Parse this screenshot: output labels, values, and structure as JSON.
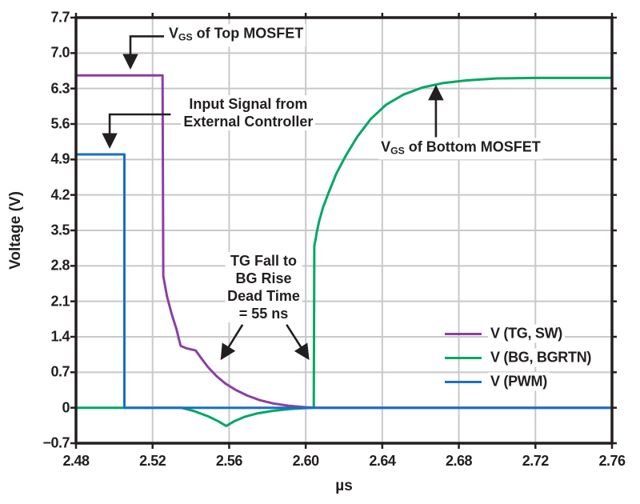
{
  "chart_data": {
    "type": "line",
    "title": "",
    "xlabel": "µs",
    "ylabel": "Voltage (V)",
    "xlim": [
      2.48,
      2.76
    ],
    "ylim": [
      -0.7,
      7.7
    ],
    "grid": true,
    "legend_position": "lower right",
    "xticks": [
      2.48,
      2.52,
      2.56,
      2.6,
      2.64,
      2.68,
      2.72,
      2.76
    ],
    "xtick_labels": [
      "2.48",
      "2.52",
      "2.56",
      "2.60",
      "2.64",
      "2.68",
      "2.72",
      "2.76"
    ],
    "yticks": [
      7.7,
      7.0,
      6.3,
      5.6,
      4.9,
      4.2,
      3.5,
      2.8,
      2.1,
      1.4,
      0.7,
      0,
      -0.7
    ],
    "ytick_labels": [
      "7.7",
      "7.0",
      "6.3",
      "5.6",
      "4.9",
      "4.2",
      "3.5",
      "2.8",
      "2.1",
      "1.4",
      "0.7",
      "0",
      "−0.7"
    ],
    "series": [
      {
        "name": "V (TG, SW)",
        "color": "#8C3FA4",
        "points": [
          [
            2.48,
            6.56
          ],
          [
            2.5252,
            6.56
          ],
          [
            2.5256,
            2.6
          ],
          [
            2.5275,
            2.2
          ],
          [
            2.53,
            1.85
          ],
          [
            2.5325,
            1.55
          ],
          [
            2.534,
            1.32
          ],
          [
            2.5347,
            1.22
          ],
          [
            2.538,
            1.17
          ],
          [
            2.5425,
            1.13
          ],
          [
            2.545,
            1.0
          ],
          [
            2.549,
            0.8
          ],
          [
            2.5535,
            0.62
          ],
          [
            2.558,
            0.48
          ],
          [
            2.5635,
            0.35
          ],
          [
            2.5695,
            0.24
          ],
          [
            2.576,
            0.15
          ],
          [
            2.583,
            0.085
          ],
          [
            2.591,
            0.04
          ],
          [
            2.599,
            0.012
          ],
          [
            2.606,
            0
          ],
          [
            2.76,
            0
          ]
        ]
      },
      {
        "name": "V (BG, BGRTN)",
        "color": "#00A765",
        "points": [
          [
            2.48,
            0
          ],
          [
            2.535,
            0
          ],
          [
            2.542,
            -0.07
          ],
          [
            2.549,
            -0.17
          ],
          [
            2.5545,
            -0.27
          ],
          [
            2.5585,
            -0.36
          ],
          [
            2.5625,
            -0.27
          ],
          [
            2.568,
            -0.18
          ],
          [
            2.575,
            -0.11
          ],
          [
            2.583,
            -0.06
          ],
          [
            2.592,
            -0.025
          ],
          [
            2.601,
            -0.005
          ],
          [
            2.6042,
            0
          ],
          [
            2.6045,
            3.2
          ],
          [
            2.6052,
            3.33
          ],
          [
            2.6057,
            3.45
          ],
          [
            2.607,
            3.68
          ],
          [
            2.609,
            3.95
          ],
          [
            2.612,
            4.25
          ],
          [
            2.616,
            4.62
          ],
          [
            2.621,
            4.98
          ],
          [
            2.627,
            5.35
          ],
          [
            2.634,
            5.7
          ],
          [
            2.642,
            5.98
          ],
          [
            2.651,
            6.18
          ],
          [
            2.661,
            6.32
          ],
          [
            2.672,
            6.41
          ],
          [
            2.684,
            6.46
          ],
          [
            2.7,
            6.5
          ],
          [
            2.72,
            6.51
          ],
          [
            2.76,
            6.51
          ]
        ]
      },
      {
        "name": "V (PWM)",
        "color": "#1A6FC5",
        "points": [
          [
            2.48,
            5.0
          ],
          [
            2.5053,
            5.0
          ],
          [
            2.5053,
            0
          ],
          [
            2.76,
            0
          ]
        ]
      }
    ],
    "annotations": [
      {
        "id": "vgs-top-mosfet",
        "segments": [
          {
            "t": "V"
          },
          {
            "sub": "GS"
          },
          {
            "t": " of Top MOSFET"
          }
        ],
        "anchor": {
          "x": 2.5272,
          "y": 7.35,
          "align": "left"
        },
        "arrows": [
          {
            "points": [
              [
                2.526,
                7.33
              ],
              [
                2.5084,
                7.33
              ],
              [
                2.5084,
                6.72
              ]
            ]
          }
        ]
      },
      {
        "id": "input-signal",
        "lines": [
          "Input Signal from",
          "External Controller"
        ],
        "anchor": {
          "x": 2.57,
          "y": 5.82,
          "align": "center"
        },
        "arrows": [
          {
            "points": [
              [
                2.5295,
                5.79
              ],
              [
                2.4976,
                5.79
              ],
              [
                2.4976,
                5.16
              ]
            ]
          }
        ]
      },
      {
        "id": "dead-time",
        "lines": [
          "TG Fall to",
          "BG Rise",
          "Dead Time",
          "= 55 ns"
        ],
        "anchor": {
          "x": 2.578,
          "y": 2.38,
          "align": "center"
        },
        "arrows": [
          {
            "points": [
              [
                2.567,
                1.64
              ],
              [
                2.5562,
                0.98
              ]
            ]
          },
          {
            "points": [
              [
                2.59,
                1.64
              ],
              [
                2.6012,
                0.98
              ]
            ]
          }
        ]
      },
      {
        "id": "vgs-bottom-mosfet",
        "segments": [
          {
            "t": "V"
          },
          {
            "sub": "GS"
          },
          {
            "t": " of Bottom MOSFET"
          }
        ],
        "anchor": {
          "x": 2.638,
          "y": 5.11,
          "align": "left"
        },
        "arrows": [
          {
            "points": [
              [
                2.668,
                5.34
              ],
              [
                2.668,
                6.33
              ]
            ]
          }
        ]
      }
    ]
  },
  "legend": {
    "items": [
      {
        "label": "V (TG, SW)",
        "color": "#8C3FA4"
      },
      {
        "label": "V (BG, BGRTN)",
        "color": "#00A765"
      },
      {
        "label": "V (PWM)",
        "color": "#1A6FC5"
      }
    ]
  },
  "colors": {
    "text": "#231F20",
    "grid": "#C8C8CC",
    "background": "#FFFFFF"
  }
}
